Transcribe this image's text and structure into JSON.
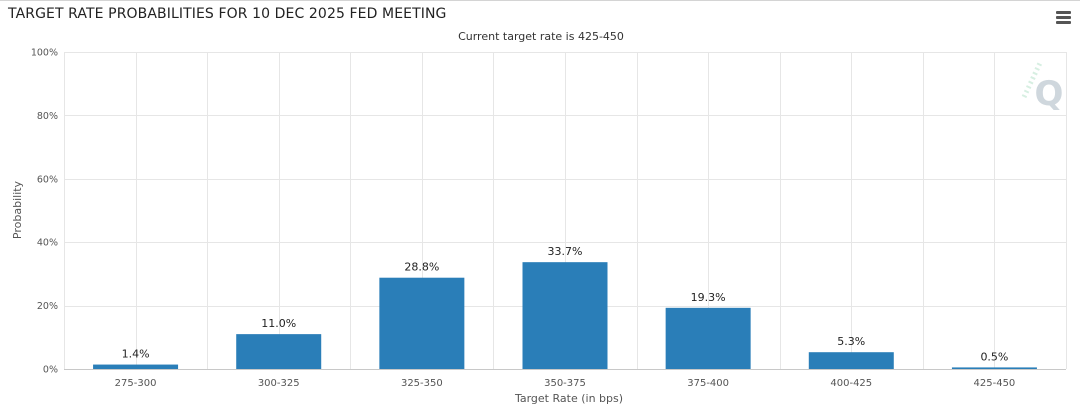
{
  "header": {
    "title": "TARGET RATE PROBABILITIES FOR 10 DEC 2025 FED MEETING",
    "menu_icon": "hamburger-menu-icon"
  },
  "watermark": {
    "icon": "q-logo-icon",
    "letter": "Q"
  },
  "colors": {
    "bar": "#2a7eb8",
    "grid": "#e6e6e6",
    "axis_text": "#555555",
    "label_text": "#222222",
    "watermark": "#cfd7dd"
  },
  "chart_data": {
    "type": "bar",
    "title": "TARGET RATE PROBABILITIES FOR 10 DEC 2025 FED MEETING",
    "subtitle": "Current target rate is 425-450",
    "xlabel": "Target Rate (in bps)",
    "ylabel": "Probability",
    "categories": [
      "275-300",
      "300-325",
      "325-350",
      "350-375",
      "375-400",
      "400-425",
      "425-450"
    ],
    "values": [
      1.4,
      11.0,
      28.8,
      33.7,
      19.3,
      5.3,
      0.5
    ],
    "data_labels": [
      "1.4%",
      "11.0%",
      "28.8%",
      "33.7%",
      "19.3%",
      "5.3%",
      "0.5%"
    ],
    "ylim": [
      0,
      100
    ],
    "yticks": [
      0,
      20,
      40,
      60,
      80,
      100
    ],
    "ytick_labels": [
      "0%",
      "20%",
      "40%",
      "60%",
      "80%",
      "100%"
    ],
    "grid": true,
    "legend": "none"
  }
}
